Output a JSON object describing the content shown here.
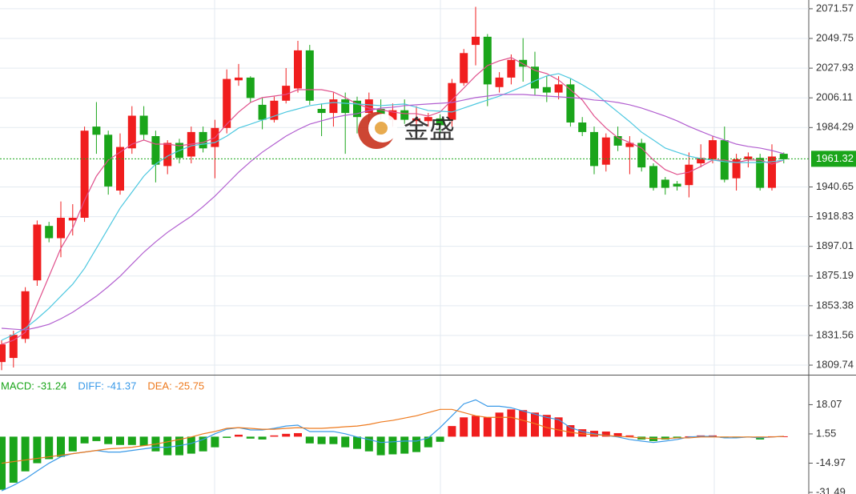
{
  "chart_data": [
    {
      "type": "candlestick",
      "up_color": "#f01e1e",
      "down_color": "#1aa51a",
      "ylim": [
        1802.7,
        2078.0
      ],
      "yticks": [
        2071.57,
        2049.75,
        2027.93,
        2006.11,
        1984.29,
        1940.65,
        1918.83,
        1897.01,
        1875.19,
        1853.38,
        1831.56,
        1809.74
      ],
      "grid": true,
      "last_price": {
        "value": 1961.32,
        "label": "1961.32",
        "color": "#1aa51a"
      },
      "watermark": "金盛",
      "open": [
        1812,
        1815,
        1829,
        1872,
        1912,
        1903,
        1916,
        1918,
        1985,
        1979,
        1938,
        1969,
        1993,
        1978,
        1956,
        1973,
        1963,
        1981,
        1970,
        1984,
        2019,
        2021,
        2001,
        1990,
        2004,
        2013,
        2041,
        1998,
        1995,
        2005,
        2004,
        1995,
        1998,
        1990,
        1997,
        1989,
        1989,
        1991,
        1990,
        2017,
        2045,
        2051,
        2014,
        2021,
        2034,
        2029,
        2014,
        2010,
        2016,
        1988,
        1981,
        1957,
        1978,
        1970,
        1973,
        1956,
        1946,
        1943,
        1942,
        1958,
        1961,
        1975,
        1947,
        1961,
        1962,
        1940,
        1965
      ],
      "close": [
        1825,
        1832,
        1864,
        1913,
        1903,
        1918,
        1918,
        1982,
        1979,
        1941,
        1970,
        1993,
        1979,
        1957,
        1973,
        1962,
        1981,
        1969,
        1984,
        2020,
        2021,
        2006,
        1990,
        2004,
        2015,
        2041,
        2004,
        1995,
        2005,
        1995,
        1992,
        2005,
        1994,
        1997,
        1990,
        1991,
        1992,
        1986,
        2017,
        2039,
        2051,
        2016,
        2021,
        2034,
        2029,
        2013,
        2010,
        2016,
        1988,
        1981,
        1956,
        1977,
        1971,
        1973,
        1955,
        1940,
        1940,
        1941,
        1957,
        1962,
        1975,
        1946,
        1961,
        1963,
        1940,
        1963,
        1961
      ],
      "high": [
        1828,
        1835,
        1867,
        1916,
        1915,
        1930,
        1928,
        1985,
        2003,
        1982,
        1980,
        2000,
        2000,
        1982,
        1975,
        1976,
        1985,
        1985,
        1990,
        2027,
        2031,
        2022,
        2006,
        2007,
        2028,
        2048,
        2045,
        2002,
        2010,
        2010,
        2007,
        2010,
        2005,
        2002,
        2005,
        2000,
        1995,
        1994,
        2020,
        2042,
        2073,
        2053,
        2025,
        2038,
        2050,
        2040,
        2022,
        2022,
        2020,
        1992,
        1985,
        1980,
        1985,
        1978,
        1976,
        1958,
        1948,
        1945,
        1966,
        1972,
        1978,
        1985,
        1965,
        1966,
        1965,
        1972,
        1966
      ],
      "low": [
        1806,
        1808,
        1826,
        1868,
        1900,
        1889,
        1905,
        1915,
        1965,
        1935,
        1935,
        1965,
        1975,
        1944,
        1950,
        1958,
        1958,
        1966,
        1947,
        1980,
        2015,
        2003,
        1983,
        1988,
        2002,
        2010,
        2001,
        1978,
        1985,
        1965,
        1980,
        1988,
        1990,
        1985,
        1987,
        1986,
        1985,
        1980,
        1985,
        2015,
        2030,
        2000,
        2010,
        2016,
        2018,
        2008,
        2003,
        2005,
        1985,
        1978,
        1950,
        1952,
        1967,
        1950,
        1952,
        1938,
        1935,
        1938,
        1933,
        1955,
        1958,
        1944,
        1938,
        1955,
        1938,
        1938,
        1958
      ],
      "series": [
        {
          "color": "#e0508c",
          "values": [
            1825.0,
            1828.0,
            1833.8,
            1854.4,
            1875.0,
            1895.6,
            1910.3,
            1930.9,
            1948.6,
            1960.4,
            1966.2,
            1972.1,
            1975.1,
            1972.1,
            1972.1,
            1970.9,
            1972.1,
            1973.3,
            1976.8,
            1986.8,
            1995.7,
            2002.7,
            2006.3,
            2007.4,
            2008.6,
            2012.1,
            2012.1,
            2012.1,
            2010.4,
            2006.3,
            2001.6,
            1998.6,
            1997.4,
            1995.7,
            1994.5,
            1994.5,
            1992.7,
            1995.7,
            2004.5,
            2013.3,
            2022.2,
            2029.8,
            2033.3,
            2035.7,
            2031.0,
            2026.3,
            2023.9,
            2019.2,
            2012.1,
            2004.5,
            1992.7,
            1983.9,
            1976.8,
            1973.3,
            1969.2,
            1960.4,
            1953.3,
            1949.8,
            1951.5,
            1955.7,
            1960.4,
            1960.4,
            1958.6,
            1960.4,
            1960.4,
            1957.4,
            1960.4
          ]
        },
        {
          "color": "#4ec8e0",
          "values": [
            1828.0,
            1832.1,
            1836.8,
            1843.8,
            1851.5,
            1860.4,
            1869.2,
            1880.9,
            1895.6,
            1910.3,
            1925.1,
            1936.8,
            1948.6,
            1957.4,
            1963.3,
            1967.4,
            1970.9,
            1972.1,
            1973.3,
            1978.0,
            1983.9,
            1986.8,
            1989.8,
            1992.7,
            1995.7,
            1998.0,
            2000.4,
            2001.6,
            2002.7,
            2002.1,
            2001.6,
            2001.0,
            2000.4,
            2001.0,
            2001.6,
            1999.2,
            1996.8,
            1996.3,
            1995.7,
            1998.6,
            2001.6,
            2004.5,
            2007.4,
            2010.9,
            2014.5,
            2018.6,
            2022.2,
            2023.9,
            2020.4,
            2015.7,
            2010.4,
            2002.7,
            1995.7,
            1988.6,
            1980.9,
            1975.1,
            1969.2,
            1966.2,
            1963.3,
            1961.5,
            1960.4,
            1959.2,
            1958.6,
            1958.6,
            1958.6,
            1959.2,
            1960.4
          ]
        },
        {
          "color": "#b25fd0",
          "values": [
            1836.8,
            1836.2,
            1835.6,
            1837.4,
            1839.7,
            1843.8,
            1848.6,
            1854.4,
            1860.4,
            1867.4,
            1875.0,
            1883.9,
            1892.7,
            1900.3,
            1907.3,
            1913.3,
            1919.1,
            1926.2,
            1933.9,
            1942.7,
            1951.5,
            1959.2,
            1966.2,
            1972.1,
            1978.0,
            1982.7,
            1986.8,
            1989.2,
            1991.6,
            1993.3,
            1994.5,
            1996.8,
            1998.6,
            1999.2,
            2000.4,
            2001.0,
            2001.6,
            2002.1,
            2002.7,
            2004.5,
            2006.3,
            2007.4,
            2008.6,
            2008.6,
            2008.6,
            2008.0,
            2007.4,
            2006.9,
            2006.3,
            2005.7,
            2004.5,
            2003.9,
            2002.7,
            2001.0,
            1998.6,
            1995.7,
            1992.7,
            1989.2,
            1985.1,
            1981.5,
            1978.0,
            1975.1,
            1972.1,
            1970.4,
            1969.2,
            1967.4,
            1965.1
          ]
        }
      ]
    },
    {
      "type": "macd",
      "ylim": [
        -32.4,
        34.1
      ],
      "yticks": [
        18.07,
        1.55,
        -14.97,
        -31.49
      ],
      "hist": {
        "name": "MACD: -31.24",
        "color": "#1aa51a",
        "up_color": "#f01e1e",
        "down_color": "#1aa51a",
        "values": [
          -30,
          -26,
          -19.6,
          -15,
          -12.7,
          -11.4,
          -8.3,
          -3.8,
          -2.5,
          -4.2,
          -4.7,
          -4.7,
          -5.1,
          -8.3,
          -10.5,
          -10.5,
          -9.6,
          -8.3,
          -6.0,
          -0.7,
          1.1,
          -1.1,
          -1.6,
          0.7,
          1.6,
          2.0,
          -3.8,
          -4.2,
          -4.2,
          -6.0,
          -6.9,
          -8.3,
          -10.5,
          -10.0,
          -9.6,
          -8.7,
          -6.0,
          -2.9,
          6.0,
          10.9,
          11.8,
          10.9,
          13.6,
          15.4,
          15.0,
          13.6,
          12.3,
          10.9,
          6.5,
          4.2,
          3.3,
          2.9,
          2.0,
          0.7,
          -1.6,
          -2.5,
          -1.6,
          -0.7,
          0.2,
          0.7,
          0.7,
          -0.7,
          -0.7,
          -0.2,
          -1.6,
          0.2,
          0.2
        ]
      },
      "series": [
        {
          "name": "DIFF: -41.37",
          "color": "#3a9ae8",
          "values": [
            -30.6,
            -27.5,
            -23.9,
            -19.4,
            -15.0,
            -11.4,
            -9.6,
            -8.7,
            -7.8,
            -8.7,
            -8.7,
            -7.8,
            -6.9,
            -6.0,
            -6.0,
            -5.1,
            -3.8,
            -1.6,
            1.6,
            4.2,
            5.1,
            3.8,
            3.8,
            4.7,
            6.0,
            6.5,
            2.9,
            2.9,
            2.9,
            1.6,
            -0.2,
            -1.6,
            -3.3,
            -2.9,
            -2.5,
            -2.5,
            -0.7,
            5.1,
            11.8,
            18.5,
            20.8,
            17.2,
            17.2,
            16.3,
            14.5,
            12.7,
            10.9,
            9.6,
            5.1,
            2.9,
            1.6,
            0.7,
            -0.2,
            -1.6,
            -2.5,
            -3.3,
            -2.5,
            -1.6,
            -0.2,
            0.2,
            0.2,
            -0.7,
            -0.7,
            -0.2,
            -0.7,
            -0.2,
            0.2
          ]
        },
        {
          "name": "DEA: -25.75",
          "color": "#ee7a1e",
          "values": [
            -15.0,
            -14.1,
            -13.2,
            -12.3,
            -11.4,
            -10.5,
            -9.6,
            -8.7,
            -7.8,
            -6.9,
            -6.5,
            -6.0,
            -5.1,
            -4.2,
            -2.9,
            -1.6,
            -0.2,
            1.6,
            2.9,
            4.7,
            5.1,
            4.7,
            4.2,
            4.2,
            4.7,
            5.1,
            4.7,
            4.7,
            5.1,
            5.6,
            6.0,
            6.9,
            8.3,
            9.2,
            10.5,
            11.8,
            13.6,
            15.4,
            15.4,
            13.6,
            11.8,
            10.9,
            10.9,
            10.9,
            9.2,
            7.4,
            5.1,
            3.8,
            2.5,
            1.6,
            1.1,
            0.7,
            0.2,
            -0.2,
            -0.7,
            -1.1,
            -1.1,
            -0.7,
            -0.7,
            -0.2,
            -0.2,
            -0.2,
            -0.2,
            -0.2,
            -0.2,
            -0.2,
            0.2
          ]
        }
      ]
    }
  ]
}
